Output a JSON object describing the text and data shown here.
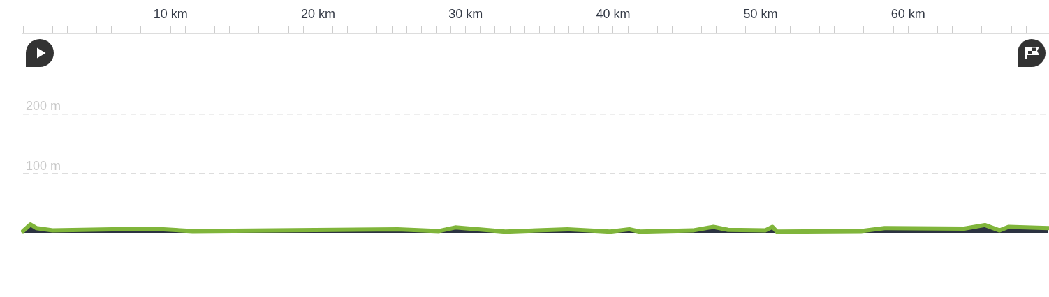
{
  "chart_data": {
    "type": "area",
    "x": [
      0,
      0.5,
      0.9,
      2.0,
      8.7,
      11.5,
      25.4,
      28.2,
      29.3,
      32.7,
      36.9,
      39.8,
      41.1,
      41.8,
      45.4,
      46.8,
      47.8,
      50.3,
      50.8,
      51.1,
      56.8,
      58.4,
      63.8,
      65.2,
      66.2,
      66.8,
      69.5
    ],
    "series": [
      {
        "color": "#80b53b",
        "values": [
          3,
          14,
          8,
          4,
          7,
          3,
          6,
          3,
          9,
          2,
          6,
          2,
          6,
          2,
          4,
          10,
          5,
          4,
          10,
          2,
          3,
          8,
          7,
          13,
          4,
          10,
          8
        ]
      }
    ],
    "xlim": [
      0,
      69.5
    ],
    "xticks": [
      {
        "value": 0,
        "label": null
      },
      {
        "value": 1,
        "label": null
      },
      {
        "value": 2,
        "label": null
      },
      {
        "value": 3,
        "label": null
      },
      {
        "value": 4,
        "label": null
      },
      {
        "value": 5,
        "label": null
      },
      {
        "value": 6,
        "label": null
      },
      {
        "value": 7,
        "label": null
      },
      {
        "value": 8,
        "label": null
      },
      {
        "value": 9,
        "label": null
      },
      {
        "value": 10,
        "label": "10 km"
      },
      {
        "value": 11,
        "label": null
      },
      {
        "value": 12,
        "label": null
      },
      {
        "value": 13,
        "label": null
      },
      {
        "value": 14,
        "label": null
      },
      {
        "value": 15,
        "label": null
      },
      {
        "value": 16,
        "label": null
      },
      {
        "value": 17,
        "label": null
      },
      {
        "value": 18,
        "label": null
      },
      {
        "value": 19,
        "label": null
      },
      {
        "value": 20,
        "label": "20 km"
      },
      {
        "value": 21,
        "label": null
      },
      {
        "value": 22,
        "label": null
      },
      {
        "value": 23,
        "label": null
      },
      {
        "value": 24,
        "label": null
      },
      {
        "value": 25,
        "label": null
      },
      {
        "value": 26,
        "label": null
      },
      {
        "value": 27,
        "label": null
      },
      {
        "value": 28,
        "label": null
      },
      {
        "value": 29,
        "label": null
      },
      {
        "value": 30,
        "label": "30 km"
      },
      {
        "value": 31,
        "label": null
      },
      {
        "value": 32,
        "label": null
      },
      {
        "value": 33,
        "label": null
      },
      {
        "value": 34,
        "label": null
      },
      {
        "value": 35,
        "label": null
      },
      {
        "value": 36,
        "label": null
      },
      {
        "value": 37,
        "label": null
      },
      {
        "value": 38,
        "label": null
      },
      {
        "value": 39,
        "label": null
      },
      {
        "value": 40,
        "label": "40 km"
      },
      {
        "value": 41,
        "label": null
      },
      {
        "value": 42,
        "label": null
      },
      {
        "value": 43,
        "label": null
      },
      {
        "value": 44,
        "label": null
      },
      {
        "value": 45,
        "label": null
      },
      {
        "value": 46,
        "label": null
      },
      {
        "value": 47,
        "label": null
      },
      {
        "value": 48,
        "label": null
      },
      {
        "value": 49,
        "label": null
      },
      {
        "value": 50,
        "label": "50 km"
      },
      {
        "value": 51,
        "label": null
      },
      {
        "value": 52,
        "label": null
      },
      {
        "value": 53,
        "label": null
      },
      {
        "value": 54,
        "label": null
      },
      {
        "value": 55,
        "label": null
      },
      {
        "value": 56,
        "label": null
      },
      {
        "value": 57,
        "label": null
      },
      {
        "value": 58,
        "label": null
      },
      {
        "value": 59,
        "label": null
      },
      {
        "value": 60,
        "label": "60 km"
      },
      {
        "value": 61,
        "label": null
      },
      {
        "value": 62,
        "label": null
      },
      {
        "value": 63,
        "label": null
      },
      {
        "value": 64,
        "label": null
      },
      {
        "value": 65,
        "label": null
      },
      {
        "value": 66,
        "label": null
      },
      {
        "value": 67,
        "label": null
      },
      {
        "value": 68,
        "label": null
      },
      {
        "value": 69,
        "label": null
      }
    ],
    "ylim": [
      0,
      335
    ],
    "yticks": [
      {
        "value": 100,
        "label": "100 m"
      },
      {
        "value": 200,
        "label": "200 m"
      }
    ],
    "grid": "y"
  }
}
